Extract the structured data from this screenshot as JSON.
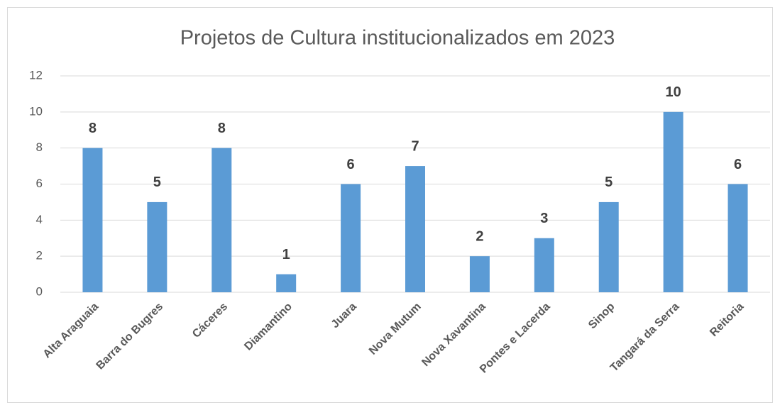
{
  "chart_data": {
    "type": "bar",
    "title": "Projetos de Cultura institucionalizados em 2023",
    "categories": [
      "Alta Araguaia",
      "Barra do Bugres",
      "Cáceres",
      "Diamantino",
      "Juara",
      "Nova Mutum",
      "Nova Xavantina",
      "Pontes e Lacerda",
      "Sinop",
      "Tangará da Serra",
      "Reitoria"
    ],
    "values": [
      8,
      5,
      8,
      1,
      6,
      7,
      2,
      3,
      5,
      10,
      6
    ],
    "color": "#5b9bd5",
    "ylim": [
      0,
      12
    ],
    "yticks": [
      0,
      2,
      4,
      6,
      8,
      10,
      12
    ],
    "grid": true
  }
}
